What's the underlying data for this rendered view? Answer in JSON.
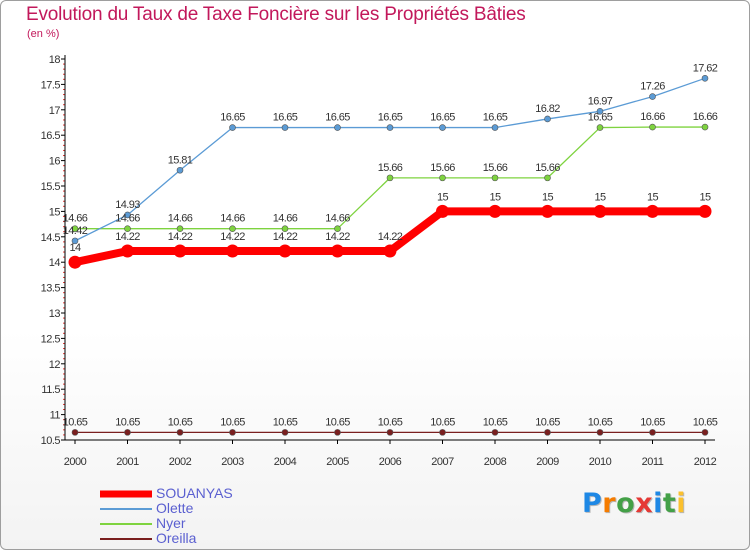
{
  "header": {
    "title": "Evolution du Taux de Taxe Foncière sur les Propriétés Bâties",
    "unit": "(en %)"
  },
  "chart_data": {
    "type": "line",
    "title": "Evolution du Taux de Taxe Foncière sur les Propriétés Bâties",
    "ylabel": "(en %)",
    "xlabel": "",
    "ylim": [
      10.5,
      18
    ],
    "y_ticks": [
      "10.5",
      "11",
      "11.5",
      "12",
      "12.5",
      "13",
      "13.5",
      "14",
      "14.5",
      "15",
      "15.5",
      "16",
      "16.5",
      "17",
      "17.5",
      "18"
    ],
    "categories": [
      "2000",
      "2001",
      "2002",
      "2003",
      "2004",
      "2005",
      "2006",
      "2007",
      "2008",
      "2009",
      "2010",
      "2011",
      "2012"
    ],
    "series": [
      {
        "name": "SOUANYAS",
        "color": "#ff0000",
        "values": [
          14,
          14.22,
          14.22,
          14.22,
          14.22,
          14.22,
          14.22,
          15,
          15,
          15,
          15,
          15,
          15
        ],
        "labels": [
          "14",
          "14.22",
          "14.22",
          "14.22",
          "14.22",
          "14.22",
          "14.22",
          "15",
          "15",
          "15",
          "15",
          "15",
          "15"
        ]
      },
      {
        "name": "Olette",
        "color": "#5b9bd5",
        "values": [
          14.42,
          14.93,
          15.81,
          16.65,
          16.65,
          16.65,
          16.65,
          16.65,
          16.65,
          16.82,
          16.97,
          17.26,
          17.62
        ],
        "labels": [
          "14.42",
          "14.93",
          "15.81",
          "16.65",
          "16.65",
          "16.65",
          "16.65",
          "16.65",
          "16.65",
          "16.82",
          "16.97",
          "17.26",
          "17.62"
        ]
      },
      {
        "name": "Nyer",
        "color": "#7ed33f",
        "values": [
          14.66,
          14.66,
          14.66,
          14.66,
          14.66,
          14.66,
          15.66,
          15.66,
          15.66,
          15.66,
          16.65,
          16.66,
          16.66
        ],
        "labels": [
          "14.66",
          "14.66",
          "14.66",
          "14.66",
          "14.66",
          "14.66",
          "15.66",
          "15.66",
          "15.66",
          "15.66",
          "16.65",
          "16.66",
          "16.66"
        ]
      },
      {
        "name": "Oreilla",
        "color": "#7a1f1f",
        "values": [
          10.65,
          10.65,
          10.65,
          10.65,
          10.65,
          10.65,
          10.65,
          10.65,
          10.65,
          10.65,
          10.65,
          10.65,
          10.65
        ],
        "labels": [
          "10.65",
          "10.65",
          "10.65",
          "10.65",
          "10.65",
          "10.65",
          "10.65",
          "10.65",
          "10.65",
          "10.65",
          "10.65",
          "10.65",
          "10.65"
        ]
      }
    ],
    "legend": [
      "SOUANYAS",
      "Olette",
      "Nyer",
      "Oreilla"
    ],
    "grid": false,
    "legend_position": "bottom-left"
  },
  "brand": {
    "letters": [
      "P",
      "r",
      "o",
      "x",
      "i",
      "t",
      "i"
    ],
    "colors": [
      "#1e88e5",
      "#f57c00",
      "#43a047",
      "#e53935",
      "#1e88e5",
      "#43a047",
      "#fbc02d"
    ]
  }
}
